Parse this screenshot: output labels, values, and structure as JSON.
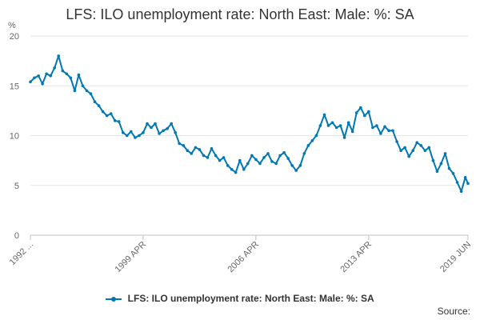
{
  "chart_data": {
    "type": "line",
    "title": "LFS: ILO unemployment rate: North East: Male: %: SA",
    "ylabel": "%",
    "ylim": [
      0,
      20
    ],
    "yticks": [
      "0",
      "5",
      "10",
      "15",
      "20"
    ],
    "xlim": [
      "1992-04",
      "2019-06"
    ],
    "xticks": [
      {
        "label": "1992 ...",
        "date": "1992-04"
      },
      {
        "label": "1999 APR",
        "date": "1999-04"
      },
      {
        "label": "2006 APR",
        "date": "2006-04"
      },
      {
        "label": "2013 APR",
        "date": "2013-04"
      },
      {
        "label": "2019 JUN",
        "date": "2019-06"
      }
    ],
    "grid": true,
    "legend_position": "bottom",
    "color": "#0078b4",
    "series": [
      {
        "name": "LFS: ILO unemployment rate: North East: Male: %: SA",
        "points": [
          [
            "1992-04",
            15.4
          ],
          [
            "1992-07",
            15.8
          ],
          [
            "1992-10",
            16.0
          ],
          [
            "1993-01",
            15.2
          ],
          [
            "1993-04",
            16.2
          ],
          [
            "1993-07",
            16.0
          ],
          [
            "1993-10",
            16.8
          ],
          [
            "1994-01",
            18.0
          ],
          [
            "1994-04",
            16.5
          ],
          [
            "1994-07",
            16.2
          ],
          [
            "1994-10",
            15.8
          ],
          [
            "1995-01",
            14.5
          ],
          [
            "1995-04",
            16.1
          ],
          [
            "1995-07",
            15.0
          ],
          [
            "1995-10",
            14.5
          ],
          [
            "1996-01",
            14.2
          ],
          [
            "1996-04",
            13.4
          ],
          [
            "1996-07",
            13.0
          ],
          [
            "1996-10",
            12.4
          ],
          [
            "1997-01",
            12.0
          ],
          [
            "1997-04",
            12.2
          ],
          [
            "1997-07",
            11.5
          ],
          [
            "1997-10",
            11.4
          ],
          [
            "1998-01",
            10.3
          ],
          [
            "1998-04",
            10.0
          ],
          [
            "1998-07",
            10.4
          ],
          [
            "1998-10",
            9.8
          ],
          [
            "1999-01",
            10.0
          ],
          [
            "1999-04",
            10.3
          ],
          [
            "1999-07",
            11.2
          ],
          [
            "1999-10",
            10.8
          ],
          [
            "2000-01",
            11.2
          ],
          [
            "2000-04",
            10.2
          ],
          [
            "2000-07",
            10.5
          ],
          [
            "2000-10",
            10.7
          ],
          [
            "2001-01",
            11.2
          ],
          [
            "2001-04",
            10.3
          ],
          [
            "2001-07",
            9.2
          ],
          [
            "2001-10",
            9.0
          ],
          [
            "2002-01",
            8.5
          ],
          [
            "2002-04",
            8.2
          ],
          [
            "2002-07",
            8.8
          ],
          [
            "2002-10",
            8.6
          ],
          [
            "2003-01",
            8.0
          ],
          [
            "2003-04",
            7.8
          ],
          [
            "2003-07",
            8.7
          ],
          [
            "2003-10",
            8.0
          ],
          [
            "2004-01",
            7.5
          ],
          [
            "2004-04",
            7.8
          ],
          [
            "2004-07",
            7.0
          ],
          [
            "2004-10",
            6.6
          ],
          [
            "2005-01",
            6.3
          ],
          [
            "2005-04",
            7.5
          ],
          [
            "2005-07",
            6.6
          ],
          [
            "2005-10",
            7.2
          ],
          [
            "2006-01",
            8.0
          ],
          [
            "2006-04",
            7.6
          ],
          [
            "2006-07",
            7.2
          ],
          [
            "2006-10",
            7.8
          ],
          [
            "2007-01",
            8.2
          ],
          [
            "2007-04",
            7.4
          ],
          [
            "2007-07",
            7.2
          ],
          [
            "2007-10",
            8.0
          ],
          [
            "2008-01",
            8.3
          ],
          [
            "2008-04",
            7.7
          ],
          [
            "2008-07",
            7.0
          ],
          [
            "2008-10",
            6.5
          ],
          [
            "2009-01",
            7.0
          ],
          [
            "2009-04",
            8.2
          ],
          [
            "2009-07",
            9.0
          ],
          [
            "2009-10",
            9.5
          ],
          [
            "2010-01",
            10.0
          ],
          [
            "2010-04",
            11.0
          ],
          [
            "2010-07",
            12.1
          ],
          [
            "2010-10",
            11.0
          ],
          [
            "2011-01",
            11.3
          ],
          [
            "2011-04",
            10.8
          ],
          [
            "2011-07",
            11.0
          ],
          [
            "2011-10",
            9.8
          ],
          [
            "2012-01",
            11.3
          ],
          [
            "2012-04",
            10.4
          ],
          [
            "2012-07",
            12.3
          ],
          [
            "2012-10",
            12.8
          ],
          [
            "2013-01",
            12.0
          ],
          [
            "2013-04",
            12.4
          ],
          [
            "2013-07",
            10.8
          ],
          [
            "2013-10",
            11.0
          ],
          [
            "2014-01",
            10.2
          ],
          [
            "2014-04",
            10.9
          ],
          [
            "2014-07",
            10.5
          ],
          [
            "2014-10",
            10.5
          ],
          [
            "2015-01",
            9.4
          ],
          [
            "2015-04",
            8.5
          ],
          [
            "2015-07",
            8.8
          ],
          [
            "2015-10",
            7.9
          ],
          [
            "2016-01",
            8.5
          ],
          [
            "2016-04",
            9.3
          ],
          [
            "2016-07",
            9.0
          ],
          [
            "2016-10",
            8.5
          ],
          [
            "2017-01",
            8.8
          ],
          [
            "2017-04",
            7.5
          ],
          [
            "2017-07",
            6.4
          ],
          [
            "2017-10",
            7.2
          ],
          [
            "2018-01",
            8.2
          ],
          [
            "2018-04",
            6.7
          ],
          [
            "2018-07",
            6.2
          ],
          [
            "2018-10",
            5.3
          ],
          [
            "2019-01",
            4.4
          ],
          [
            "2019-04",
            5.8
          ],
          [
            "2019-06",
            5.2
          ]
        ]
      }
    ]
  },
  "legend": {
    "label": "LFS: ILO unemployment rate: North East: Male: %: SA"
  },
  "source": {
    "label": "Source:"
  }
}
